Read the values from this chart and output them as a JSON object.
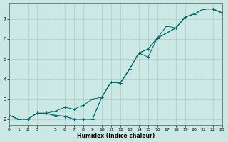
{
  "title": "",
  "xlabel": "Humidex (Indice chaleur)",
  "ylabel": "",
  "background_color": "#cce8e4",
  "grid_color": "#aacccc",
  "line_color": "#006666",
  "x_values": [
    0,
    1,
    2,
    3,
    4,
    5,
    6,
    7,
    8,
    9,
    10,
    11,
    12,
    13,
    14,
    15,
    16,
    17,
    18,
    19,
    20,
    21,
    22,
    23
  ],
  "line1_y": [
    2.2,
    2.0,
    2.0,
    2.3,
    2.3,
    2.2,
    2.15,
    2.0,
    2.0,
    2.0,
    3.1,
    3.85,
    3.8,
    4.5,
    5.3,
    5.1,
    6.05,
    6.3,
    6.55,
    7.1,
    7.25,
    7.5,
    7.5,
    7.3
  ],
  "line2_y": [
    2.2,
    2.0,
    2.0,
    2.3,
    2.3,
    2.4,
    2.6,
    2.5,
    2.7,
    3.0,
    3.1,
    3.85,
    3.8,
    4.5,
    5.3,
    5.5,
    6.05,
    6.3,
    6.55,
    7.1,
    7.25,
    7.5,
    7.5,
    7.3
  ],
  "line3_y": [
    2.2,
    2.0,
    2.0,
    2.3,
    2.3,
    2.15,
    2.15,
    2.0,
    2.0,
    2.0,
    3.1,
    3.85,
    3.8,
    4.5,
    5.3,
    5.5,
    6.05,
    6.65,
    6.55,
    7.1,
    7.25,
    7.5,
    7.5,
    7.3
  ],
  "xlim": [
    0,
    23
  ],
  "ylim": [
    1.7,
    7.8
  ],
  "yticks": [
    2,
    3,
    4,
    5,
    6,
    7
  ],
  "xticks": [
    0,
    1,
    2,
    3,
    5,
    6,
    7,
    8,
    9,
    10,
    11,
    12,
    13,
    14,
    15,
    16,
    17,
    18,
    19,
    20,
    21,
    22,
    23
  ],
  "marker": "+",
  "markersize": 3,
  "linewidth": 0.7
}
